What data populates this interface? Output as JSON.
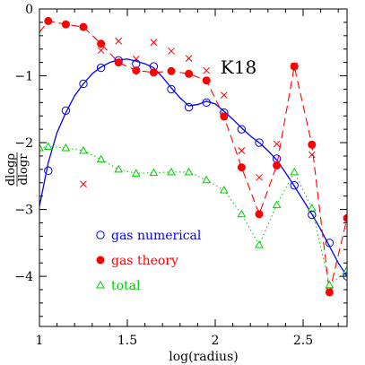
{
  "chart_data": {
    "type": "line",
    "title": "K18",
    "xlabel": "log(radius)",
    "ylabel": {
      "numerator": "dlogρ",
      "denominator": "dlogr"
    },
    "xlim": [
      1,
      2.75
    ],
    "ylim": [
      -4.75,
      0
    ],
    "x_ticks": [
      1,
      1.5,
      2,
      2.5
    ],
    "x_tick_labels": [
      "1",
      "1.5",
      "2",
      "2.5"
    ],
    "y_ticks": [
      0,
      -1,
      -2,
      -3,
      -4
    ],
    "y_tick_labels": [
      "0",
      "−1",
      "−2",
      "−3",
      "−4"
    ],
    "grid": false,
    "legend_position": "lower-left",
    "series": [
      {
        "name": "gas numerical",
        "color": "#0000ff",
        "marker": "open-circle",
        "line": "solid-smooth",
        "points": {
          "x": [
            1.05,
            1.15,
            1.25,
            1.35,
            1.45,
            1.55,
            1.65,
            1.75,
            1.85,
            1.95,
            2.05,
            2.15,
            2.25,
            2.35,
            2.45,
            2.55,
            2.65,
            2.75
          ],
          "y": [
            -2.42,
            -1.52,
            -1.12,
            -0.88,
            -0.77,
            -0.82,
            -0.86,
            -1.2,
            -1.47,
            -1.4,
            -1.55,
            -1.8,
            -2.0,
            -2.24,
            -2.64,
            -3.08,
            -3.5,
            -4.0
          ]
        },
        "curve": {
          "x": [
            1.0,
            1.05,
            1.1,
            1.15,
            1.2,
            1.25,
            1.3,
            1.35,
            1.4,
            1.45,
            1.5,
            1.55,
            1.6,
            1.65,
            1.7,
            1.75,
            1.8,
            1.85,
            1.9,
            1.95,
            2.0,
            2.05,
            2.1,
            2.15,
            2.2,
            2.25,
            2.3,
            2.35,
            2.4,
            2.45,
            2.5,
            2.55,
            2.6,
            2.65,
            2.7,
            2.75
          ],
          "y": [
            -2.95,
            -2.3,
            -1.85,
            -1.55,
            -1.3,
            -1.12,
            -0.97,
            -0.87,
            -0.8,
            -0.76,
            -0.75,
            -0.78,
            -0.82,
            -0.88,
            -1.02,
            -1.18,
            -1.33,
            -1.45,
            -1.43,
            -1.38,
            -1.42,
            -1.53,
            -1.65,
            -1.78,
            -1.9,
            -2.0,
            -2.12,
            -2.26,
            -2.45,
            -2.65,
            -2.86,
            -3.07,
            -3.3,
            -3.55,
            -3.8,
            -4.0
          ]
        }
      },
      {
        "name": "gas theory",
        "color": "#ff0000",
        "marker": "filled-circle",
        "line": "dashed",
        "x": [
          1.0,
          1.05,
          1.15,
          1.25,
          1.35,
          1.45,
          1.55,
          1.65,
          1.75,
          1.85,
          1.95,
          2.05,
          2.15,
          2.25,
          2.35,
          2.45,
          2.55,
          2.65,
          2.75
        ],
        "y": [
          -0.35,
          -0.18,
          -0.23,
          -0.27,
          -0.52,
          -0.8,
          -0.92,
          -0.95,
          -0.93,
          -0.97,
          -1.07,
          -1.61,
          -2.37,
          -3.07,
          -2.34,
          -0.86,
          -2.03,
          -4.24,
          -3.13
        ]
      },
      {
        "name": "",
        "color": "#ff0000",
        "marker": "cross",
        "line": "none",
        "x": [
          1.25,
          1.35,
          1.45,
          1.55,
          1.65,
          1.75,
          1.85,
          1.95,
          2.05,
          2.15,
          2.25,
          2.35,
          2.45,
          2.55,
          2.65
        ],
        "y": [
          -2.62,
          -0.62,
          -0.48,
          -0.75,
          -0.5,
          -0.63,
          -0.74,
          -0.92,
          -1.29,
          -2.12,
          -2.52,
          -2.02,
          -0.85,
          -2.18,
          -4.22
        ]
      },
      {
        "name": "total",
        "color": "#00cc00",
        "marker": "open-triangle",
        "line": "dotted",
        "x": [
          1.0,
          1.05,
          1.15,
          1.25,
          1.35,
          1.45,
          1.55,
          1.65,
          1.75,
          1.85,
          1.95,
          2.05,
          2.15,
          2.25,
          2.35,
          2.45,
          2.55,
          2.65,
          2.75
        ],
        "y": [
          -2.08,
          -2.06,
          -2.08,
          -2.12,
          -2.25,
          -2.4,
          -2.46,
          -2.45,
          -2.44,
          -2.44,
          -2.56,
          -2.71,
          -3.07,
          -3.53,
          -2.93,
          -2.44,
          -2.98,
          -4.13,
          -3.91
        ]
      }
    ]
  }
}
